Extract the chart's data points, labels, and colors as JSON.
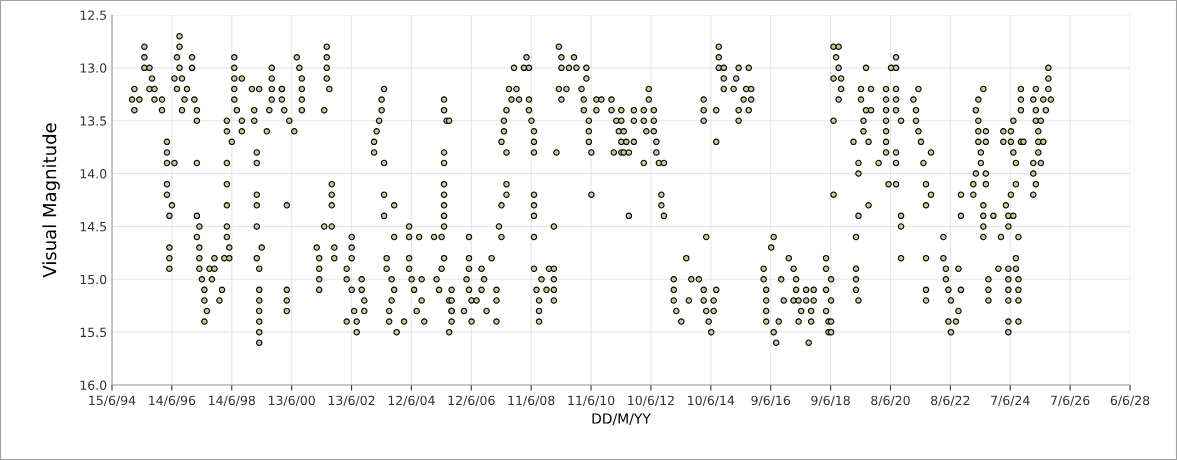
{
  "chart_data": {
    "type": "scatter",
    "xlabel": "DD/M/YY",
    "ylabel": "Visual Magnitude",
    "xlim": [
      "1994-06-15",
      "2028-06-06"
    ],
    "xticks": [
      {
        "value": "1994-06-15",
        "label": "15/6/94"
      },
      {
        "value": "1996-06-14",
        "label": "14/6/96"
      },
      {
        "value": "1998-06-14",
        "label": "14/6/98"
      },
      {
        "value": "2000-06-13",
        "label": "13/6/00"
      },
      {
        "value": "2002-06-13",
        "label": "13/6/02"
      },
      {
        "value": "2004-06-12",
        "label": "12/6/04"
      },
      {
        "value": "2006-06-12",
        "label": "12/6/06"
      },
      {
        "value": "2008-06-11",
        "label": "11/6/08"
      },
      {
        "value": "2010-06-11",
        "label": "11/6/10"
      },
      {
        "value": "2012-06-10",
        "label": "10/6/12"
      },
      {
        "value": "2014-06-10",
        "label": "10/6/14"
      },
      {
        "value": "2016-06-09",
        "label": "9/6/16"
      },
      {
        "value": "2018-06-09",
        "label": "9/6/18"
      },
      {
        "value": "2020-06-08",
        "label": "8/6/20"
      },
      {
        "value": "2022-06-08",
        "label": "8/6/22"
      },
      {
        "value": "2024-06-07",
        "label": "7/6/24"
      },
      {
        "value": "2026-06-07",
        "label": "7/6/26"
      },
      {
        "value": "2028-06-06",
        "label": "6/6/28"
      }
    ],
    "ylim": [
      16.0,
      12.5
    ],
    "yticks": [
      {
        "value": 12.5,
        "label": "12.5"
      },
      {
        "value": 13,
        "label": "13.0"
      },
      {
        "value": 13.5,
        "label": "13.5"
      },
      {
        "value": 14,
        "label": "14.0"
      },
      {
        "value": 14.5,
        "label": "14.5"
      },
      {
        "value": 15,
        "label": "15.0"
      },
      {
        "value": 15.5,
        "label": "15.5"
      },
      {
        "value": 16,
        "label": "16.0"
      }
    ],
    "grid": true,
    "marker": "circle",
    "series": [
      {
        "color": "#c5cc9a",
        "x": [
          "1995-02",
          "1995-03",
          "1995-03",
          "1995-05",
          "1995-07",
          "1995-07",
          "1995-07",
          "1995-09",
          "1995-09",
          "1995-10",
          "1995-11",
          "1995-11",
          "1996-02",
          "1996-02",
          "1996-04",
          "1996-04",
          "1996-04",
          "1996-07",
          "1996-04",
          "1996-04",
          "1996-06",
          "1996-05",
          "1996-05",
          "1996-05",
          "1996-05",
          "1996-09",
          "1996-09",
          "1996-08",
          "1996-09",
          "1996-07",
          "1996-10",
          "1996-08",
          "1996-12",
          "1996-11",
          "1996-10",
          "1997-02",
          "1997-02",
          "1997-03",
          "1997-04",
          "1997-04",
          "1997-04",
          "1997-04",
          "1997-05",
          "1997-04",
          "1997-05",
          "1997-05",
          "1997-05",
          "1997-06",
          "1997-07",
          "1997-07",
          "1997-08",
          "1997-07",
          "1997-09",
          "1997-11",
          "1997-11",
          "1997-10",
          "1998-02",
          "1998-01",
          "1998-04",
          "1998-04",
          "1998-04",
          "1998-04",
          "1998-04",
          "1998-04",
          "1998-04",
          "1998-05",
          "1998-03",
          "1998-05",
          "1998-06",
          "1998-07",
          "1998-07",
          "1998-07",
          "1998-07",
          "1998-07",
          "1998-08",
          "1998-10",
          "1998-10",
          "1998-10",
          "1999-02",
          "1999-03",
          "1999-03",
          "1999-05",
          "1999-04",
          "1999-04",
          "1999-04",
          "1999-04",
          "1999-04",
          "1999-06",
          "1999-04",
          "1999-05",
          "1999-05",
          "1999-05",
          "1999-05",
          "1999-05",
          "1999-05",
          "1999-05",
          "1999-08",
          "1999-10",
          "1999-10",
          "1999-10",
          "1999-10",
          "1999-09",
          "2000-02",
          "2000-02",
          "2000-02",
          "2000-03",
          "2000-05",
          "2000-07",
          "2000-08",
          "2000-09",
          "2000-10",
          "2000-10",
          "2000-10",
          "2000-10",
          "2000-04",
          "2000-04",
          "2000-04",
          "2000-04",
          "2001-04",
          "2001-05",
          "2001-05",
          "2001-05",
          "2001-05",
          "2001-07",
          "2001-07",
          "2001-08",
          "2001-08",
          "2001-08",
          "2001-08",
          "2001-09",
          "2001-10",
          "2001-10",
          "2001-10",
          "2001-10",
          "2001-11",
          "2001-11",
          "2002-04",
          "2002-04",
          "2002-06",
          "2002-06",
          "2002-06",
          "2002-06",
          "2002-04",
          "2002-07",
          "2002-08",
          "2002-08",
          "2002-10",
          "2002-10",
          "2002-11",
          "2002-11",
          "2003-03",
          "2003-03",
          "2003-04",
          "2003-05",
          "2003-06",
          "2003-06",
          "2003-07",
          "2003-07",
          "2003-07",
          "2003-07",
          "2003-11",
          "2003-11",
          "2003-08",
          "2003-08",
          "2003-10",
          "2003-11",
          "2003-10",
          "2003-09",
          "2003-09",
          "2003-12",
          "2004-03",
          "2004-05",
          "2004-05",
          "2004-05",
          "2004-05",
          "2004-06",
          "2004-07",
          "2004-08",
          "2004-09",
          "2004-10",
          "2004-10",
          "2004-11",
          "2005-03",
          "2005-04",
          "2005-05",
          "2005-06",
          "2005-06",
          "2005-07",
          "2005-07",
          "2005-07",
          "2005-08",
          "2005-07",
          "2005-07",
          "2005-07",
          "2005-07",
          "2005-07",
          "2005-07",
          "2005-07",
          "2005-09",
          "2005-09",
          "2005-10",
          "2005-09",
          "2005-10",
          "2005-10",
          "2005-10",
          "2005-10",
          "2006-03",
          "2006-04",
          "2006-05",
          "2006-05",
          "2006-05",
          "2006-05",
          "2006-06",
          "2006-06",
          "2006-08",
          "2006-10",
          "2006-10",
          "2006-11",
          "2006-12",
          "2007-02",
          "2007-04",
          "2007-04",
          "2007-04",
          "2007-05",
          "2007-06",
          "2007-06",
          "2007-08",
          "2007-08",
          "2007-08",
          "2007-06",
          "2007-07",
          "2007-07",
          "2007-08",
          "2007-09",
          "2007-10",
          "2007-11",
          "2007-12",
          "2008-01",
          "2008-03",
          "2008-04",
          "2008-05",
          "2008-05",
          "2008-05",
          "2008-06",
          "2008-07",
          "2008-07",
          "2008-07",
          "2008-07",
          "2008-07",
          "2008-07",
          "2008-07",
          "2008-07",
          "2008-08",
          "2008-09",
          "2008-09",
          "2008-09",
          "2008-10",
          "2008-12",
          "2009-01",
          "2009-03",
          "2009-03",
          "2009-03",
          "2009-03",
          "2009-03",
          "2009-04",
          "2009-05",
          "2009-06",
          "2009-06",
          "2009-05",
          "2009-06",
          "2009-08",
          "2009-09",
          "2009-11",
          "2009-12",
          "2010-02",
          "2010-04",
          "2010-04",
          "2010-03",
          "2010-03",
          "2010-05",
          "2010-05",
          "2010-05",
          "2010-06",
          "2010-06",
          "2010-08",
          "2010-08",
          "2010-10",
          "2011-02",
          "2011-02",
          "2011-03",
          "2011-04",
          "2011-05",
          "2011-06",
          "2011-06",
          "2011-06",
          "2011-06",
          "2011-07",
          "2011-08",
          "2011-07",
          "2011-09",
          "2011-09",
          "2011-11",
          "2011-11",
          "2011-11",
          "2012-03",
          "2012-03",
          "2012-03",
          "2012-04",
          "2012-05",
          "2012-05",
          "2012-07",
          "2012-07",
          "2012-07",
          "2012-08",
          "2012-08",
          "2012-09",
          "2012-11",
          "2012-10",
          "2012-10",
          "2012-11",
          "2013-03",
          "2013-03",
          "2013-03",
          "2013-04",
          "2013-06",
          "2013-08",
          "2013-09",
          "2013-10",
          "2014-01",
          "2014-03",
          "2014-03",
          "2014-04",
          "2014-04",
          "2014-05",
          "2014-06",
          "2014-07",
          "2014-07",
          "2014-08",
          "2014-03",
          "2014-03",
          "2014-03",
          "2014-08",
          "2014-08",
          "2014-09",
          "2014-09",
          "2014-09",
          "2014-11",
          "2014-11",
          "2014-11",
          "2015-03",
          "2015-04",
          "2015-05",
          "2015-05",
          "2015-05",
          "2015-07",
          "2015-08",
          "2015-09",
          "2015-09",
          "2015-10",
          "2015-10",
          "2016-03",
          "2016-03",
          "2016-04",
          "2016-04",
          "2016-04",
          "2016-04",
          "2016-06",
          "2016-07",
          "2016-07",
          "2016-08",
          "2016-09",
          "2016-10",
          "2016-11",
          "2017-01",
          "2017-03",
          "2017-03",
          "2017-04",
          "2017-04",
          "2017-05",
          "2017-06",
          "2017-05",
          "2017-08",
          "2017-08",
          "2017-09",
          "2017-10",
          "2017-10",
          "2017-11",
          "2017-11",
          "2018-04",
          "2018-04",
          "2018-04",
          "2018-04",
          "2018-05",
          "2018-05",
          "2018-06",
          "2018-06",
          "2018-06",
          "2018-06",
          "2018-07",
          "2018-07",
          "2018-07",
          "2018-07",
          "2018-09",
          "2018-08",
          "2018-09",
          "2018-10",
          "2018-09",
          "2018-10",
          "2019-03",
          "2019-04",
          "2019-04",
          "2019-04",
          "2019-04",
          "2019-05",
          "2019-05",
          "2019-05",
          "2019-05",
          "2019-06",
          "2019-06",
          "2019-08",
          "2019-07",
          "2019-07",
          "2019-08",
          "2019-09",
          "2019-09",
          "2019-10",
          "2019-10",
          "2020-01",
          "2020-04",
          "2020-04",
          "2020-04",
          "2020-04",
          "2020-04",
          "2020-04",
          "2020-04",
          "2020-05",
          "2020-06",
          "2020-08",
          "2020-08",
          "2020-08",
          "2020-08",
          "2020-08",
          "2020-08",
          "2020-08",
          "2020-08",
          "2020-10",
          "2020-10",
          "2020-10",
          "2020-10",
          "2021-03",
          "2021-04",
          "2021-04",
          "2021-05",
          "2021-05",
          "2021-06",
          "2021-07",
          "2021-08",
          "2021-08",
          "2021-08",
          "2021-08",
          "2021-08",
          "2021-10",
          "2021-10",
          "2022-03",
          "2022-03",
          "2022-04",
          "2022-04",
          "2022-05",
          "2022-06",
          "2022-05",
          "2022-06",
          "2022-08",
          "2022-09",
          "2022-09",
          "2022-10",
          "2022-10",
          "2022-10",
          "2023-03",
          "2023-04",
          "2023-03",
          "2023-04",
          "2023-05",
          "2023-05",
          "2023-05",
          "2023-05",
          "2023-06",
          "2023-06",
          "2023-07",
          "2023-08",
          "2023-08",
          "2023-08",
          "2023-07",
          "2023-07",
          "2023-07",
          "2023-07",
          "2023-08",
          "2023-09",
          "2023-09",
          "2023-09",
          "2023-11",
          "2024-02",
          "2024-01",
          "2024-03",
          "2024-03",
          "2024-04",
          "2024-05",
          "2024-05",
          "2024-05",
          "2024-05",
          "2024-05",
          "2024-05",
          "2024-05",
          "2024-05",
          "2024-06",
          "2024-06",
          "2024-06",
          "2024-07",
          "2024-07",
          "2024-07",
          "2024-08",
          "2024-08",
          "2024-08",
          "2024-08",
          "2024-09",
          "2024-09",
          "2024-09",
          "2024-09",
          "2024-09",
          "2024-10",
          "2024-10",
          "2024-10",
          "2024-10",
          "2024-11",
          "2025-03",
          "2025-03",
          "2025-03",
          "2025-04",
          "2025-03",
          "2025-04",
          "2025-04",
          "2025-04",
          "2025-05",
          "2025-05",
          "2025-05",
          "2025-06",
          "2025-06",
          "2025-07",
          "2025-07",
          "2025-08",
          "2025-09",
          "2025-09",
          "2025-09",
          "2025-10"
        ],
        "values": [
          13.3,
          13.4,
          13.2,
          13.3,
          12.8,
          12.9,
          13.0,
          13.2,
          13.0,
          13.1,
          13.2,
          13.3,
          13.3,
          13.4,
          13.7,
          13.8,
          13.9,
          13.9,
          14.1,
          14.2,
          14.3,
          14.4,
          14.7,
          14.8,
          14.9,
          12.7,
          12.8,
          12.9,
          13.0,
          13.1,
          13.1,
          13.2,
          13.2,
          13.3,
          13.4,
          12.9,
          13.0,
          13.3,
          13.4,
          13.5,
          13.9,
          14.4,
          14.5,
          14.6,
          14.7,
          14.8,
          14.9,
          15.0,
          15.1,
          15.2,
          15.3,
          15.4,
          14.9,
          14.8,
          14.9,
          15.0,
          15.1,
          15.2,
          13.5,
          13.6,
          13.9,
          14.1,
          14.3,
          14.5,
          14.6,
          14.7,
          14.8,
          14.8,
          13.7,
          12.9,
          13.0,
          13.1,
          13.2,
          13.3,
          13.4,
          13.1,
          13.5,
          13.6,
          13.2,
          13.4,
          13.5,
          13.2,
          13.8,
          13.9,
          14.2,
          14.3,
          14.5,
          14.7,
          14.8,
          14.9,
          15.1,
          15.2,
          15.3,
          15.4,
          15.5,
          15.6,
          13.6,
          13.0,
          13.1,
          13.2,
          13.3,
          13.4,
          13.2,
          13.2,
          13.3,
          13.4,
          13.5,
          13.6,
          12.9,
          13.0,
          13.1,
          13.2,
          13.3,
          13.4,
          14.3,
          15.1,
          15.2,
          15.3,
          14.7,
          14.8,
          14.9,
          15.0,
          15.1,
          14.5,
          13.4,
          12.8,
          12.9,
          13.0,
          13.1,
          13.2,
          14.1,
          14.2,
          14.3,
          14.5,
          14.7,
          14.8,
          14.9,
          15.0,
          15.1,
          14.6,
          14.7,
          14.8,
          15.4,
          15.3,
          15.4,
          15.5,
          15.0,
          15.1,
          15.2,
          15.3,
          13.7,
          13.8,
          13.6,
          13.5,
          13.4,
          13.3,
          13.2,
          13.9,
          14.2,
          14.4,
          14.3,
          14.6,
          14.8,
          14.9,
          15.0,
          15.1,
          15.2,
          15.3,
          15.4,
          15.5,
          15.4,
          14.5,
          14.6,
          14.8,
          14.9,
          15.0,
          15.1,
          15.3,
          14.6,
          15.0,
          15.2,
          15.4,
          14.6,
          15.0,
          15.1,
          14.9,
          14.6,
          14.8,
          13.3,
          13.4,
          13.5,
          13.8,
          13.9,
          14.1,
          14.2,
          14.3,
          14.4,
          14.5,
          13.5,
          15.2,
          15.3,
          15.5,
          15.1,
          15.2,
          15.3,
          15.4,
          15.3,
          15.0,
          15.1,
          14.9,
          14.8,
          14.6,
          15.2,
          15.4,
          15.2,
          15.1,
          14.9,
          15.0,
          15.3,
          14.8,
          15.1,
          15.2,
          15.4,
          14.5,
          14.6,
          14.3,
          14.1,
          14.2,
          13.8,
          13.7,
          13.6,
          13.5,
          13.4,
          13.2,
          13.3,
          13.0,
          13.2,
          13.3,
          13.0,
          12.9,
          13.0,
          13.3,
          13.4,
          13.5,
          13.6,
          13.7,
          13.8,
          14.2,
          14.3,
          14.4,
          14.6,
          14.9,
          15.1,
          15.2,
          15.3,
          15.4,
          15.0,
          15.1,
          14.9,
          14.9,
          15.0,
          15.1,
          15.2,
          14.5,
          13.8,
          12.8,
          12.9,
          13.0,
          13.2,
          13.3,
          13.2,
          13.0,
          12.9,
          13.0,
          13.2,
          13.0,
          13.1,
          13.3,
          13.4,
          13.5,
          13.6,
          13.7,
          13.8,
          14.2,
          13.3,
          13.4,
          13.3,
          13.3,
          13.4,
          13.8,
          13.5,
          13.6,
          13.7,
          13.8,
          13.4,
          13.5,
          13.6,
          13.7,
          13.8,
          14.4,
          13.8,
          13.4,
          13.5,
          13.7,
          13.9,
          13.4,
          13.5,
          13.6,
          13.2,
          13.3,
          13.4,
          13.5,
          13.6,
          13.7,
          13.8,
          13.9,
          13.9,
          14.2,
          14.3,
          14.4,
          15.0,
          15.1,
          15.2,
          15.3,
          15.4,
          14.8,
          15.2,
          15.0,
          15.0,
          15.1,
          15.2,
          15.3,
          14.6,
          15.4,
          15.5,
          15.2,
          15.3,
          15.1,
          13.3,
          13.4,
          13.5,
          13.7,
          13.4,
          13.0,
          12.8,
          12.9,
          13.0,
          13.1,
          13.2,
          13.2,
          13.1,
          13.0,
          13.5,
          13.4,
          13.3,
          13.2,
          13.0,
          13.4,
          13.3,
          13.2,
          14.9,
          15.0,
          15.1,
          15.2,
          15.3,
          15.4,
          14.7,
          14.6,
          15.5,
          15.6,
          15.4,
          15.0,
          15.2,
          14.8,
          14.9,
          15.2,
          15.0,
          15.1,
          15.2,
          15.3,
          15.4,
          15.1,
          15.2,
          15.6,
          15.4,
          15.3,
          15.2,
          15.1,
          14.8,
          14.9,
          15.1,
          15.3,
          15.4,
          15.5,
          15.5,
          15.4,
          15.2,
          15.0,
          14.2,
          13.5,
          13.1,
          12.8,
          12.8,
          12.9,
          13.0,
          13.2,
          13.3,
          13.1,
          13.7,
          14.6,
          14.9,
          15.0,
          15.1,
          15.2,
          14.4,
          13.9,
          14.0,
          13.2,
          13.3,
          13.4,
          13.5,
          13.6,
          13.0,
          13.7,
          14.3,
          13.4,
          13.2,
          13.9,
          13.2,
          13.3,
          13.4,
          13.5,
          13.6,
          13.7,
          13.8,
          14.1,
          13.0,
          12.9,
          13.0,
          14.1,
          13.2,
          13.3,
          13.4,
          13.8,
          13.9,
          13.5,
          14.4,
          14.5,
          14.8,
          13.3,
          13.4,
          13.5,
          13.2,
          13.6,
          13.7,
          13.9,
          14.3,
          14.8,
          15.1,
          15.2,
          14.1,
          13.8,
          14.2,
          14.6,
          14.8,
          14.9,
          15.0,
          15.1,
          15.2,
          15.4,
          15.5,
          15.4,
          15.3,
          14.9,
          14.4,
          14.2,
          15.1,
          14.1,
          14.0,
          14.2,
          13.4,
          13.3,
          13.5,
          13.6,
          13.7,
          13.8,
          13.9,
          13.2,
          13.6,
          13.7,
          14.0,
          14.3,
          14.4,
          14.5,
          14.6,
          14.1,
          15.0,
          15.1,
          15.2,
          14.4,
          14.6,
          14.9,
          13.7,
          13.6,
          14.3,
          14.4,
          14.5,
          14.9,
          15.0,
          15.1,
          15.2,
          15.4,
          15.5,
          13.6,
          13.7,
          14.2,
          14.4,
          13.8,
          13.5,
          14.1,
          13.9,
          14.8,
          14.9,
          15.0,
          15.1,
          15.2,
          14.6,
          15.4,
          13.7,
          13.3,
          13.2,
          13.4,
          13.7,
          13.9,
          14.0,
          14.2,
          13.4,
          13.3,
          13.2,
          13.5,
          14.1,
          13.6,
          13.7,
          13.8,
          13.9,
          13.5,
          13.3,
          13.7,
          13.4,
          13.1,
          13.0,
          13.2,
          13.3
        ]
      }
    ]
  }
}
